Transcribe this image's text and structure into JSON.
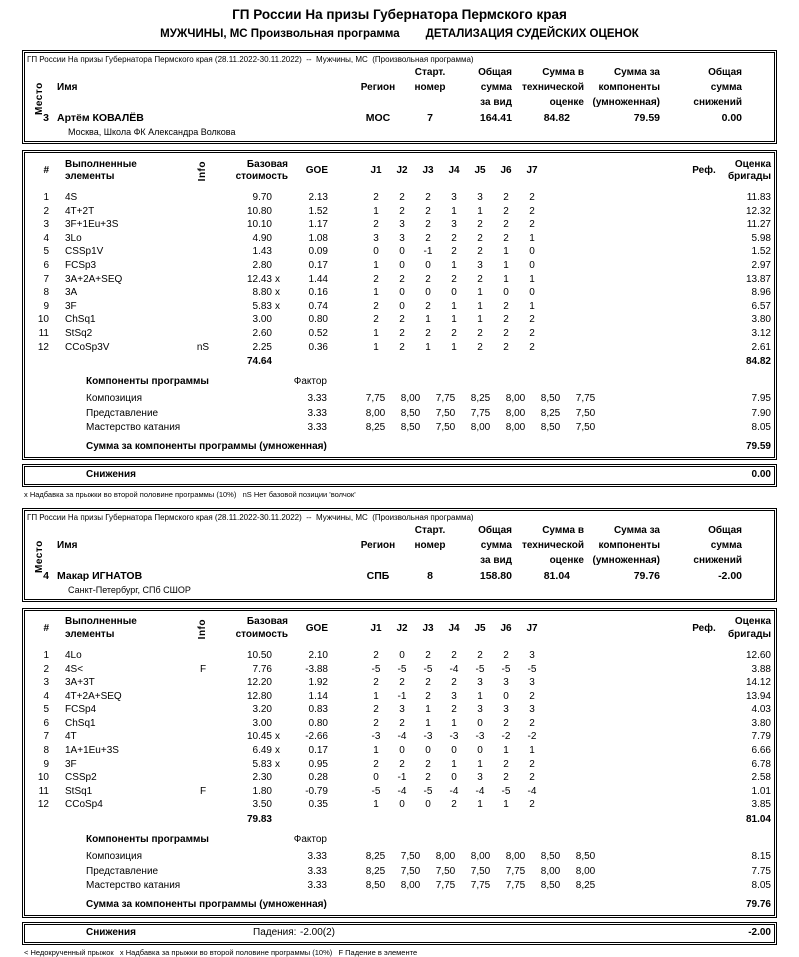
{
  "page": {
    "title": "ГП России На призы Губернатора Пермского края",
    "subtitle_left": "МУЖЧИНЫ, МС Произвольная программа",
    "subtitle_right": "ДЕТАЛИЗАЦИЯ СУДЕЙСКИХ ОЦЕНОК"
  },
  "labels": {
    "event_line": "ГП России На призы Губернатора Пермского края (28.11.2022-30.11.2022)  --  Мужчины, МС  (Произвольная программа)",
    "place": "Место",
    "name": "Имя",
    "region": "Регион",
    "start_l1": "Старт.",
    "start_l2": "номер",
    "vid_l1": "Общая",
    "vid_l2": "сумма",
    "vid_l3": "за вид",
    "tech_l1": "Сумма в",
    "tech_l2": "технической",
    "tech_l3": "оценке",
    "comp_l1": "Сумма за",
    "comp_l2": "компоненты",
    "comp_l3": "(умноженная)",
    "ded_l1": "Общая",
    "ded_l2": "сумма",
    "ded_l3": "снижений",
    "num": "#",
    "elements_l1": "Выполненные",
    "elements_l2": "элементы",
    "info": "Info",
    "base_l1": "Базовая",
    "base_l2": "стоимость",
    "goe": "GOE",
    "judges": [
      "J1",
      "J2",
      "J3",
      "J4",
      "J5",
      "J6",
      "J7"
    ],
    "ref": "Реф.",
    "panel_l1": "Оценка",
    "panel_l2": "бригады",
    "components_title": "Компоненты программы",
    "factor": "Фактор",
    "components_sum": "Сумма за компоненты программы (умноженная)",
    "deductions": "Снижения"
  },
  "blocks": [
    {
      "place": "3",
      "name": "Артём КОВАЛЁВ",
      "club": "Москва, Школа ФК Александра Волкова",
      "region": "МОС",
      "start_number": "7",
      "total_segment": "164.41",
      "total_element": "84.82",
      "total_component": "79.59",
      "total_deductions": "0.00",
      "rows": [
        {
          "n": "1",
          "name": "4S",
          "info": "",
          "base": "9.70",
          "x": "",
          "goe": "2.13",
          "j": [
            "2",
            "2",
            "2",
            "3",
            "3",
            "2",
            "2"
          ],
          "ref": "",
          "score": "11.83"
        },
        {
          "n": "2",
          "name": "4T+2T",
          "info": "",
          "base": "10.80",
          "x": "",
          "goe": "1.52",
          "j": [
            "1",
            "2",
            "2",
            "1",
            "1",
            "2",
            "2"
          ],
          "ref": "",
          "score": "12.32"
        },
        {
          "n": "3",
          "name": "3F+1Eu+3S",
          "info": "",
          "base": "10.10",
          "x": "",
          "goe": "1.17",
          "j": [
            "2",
            "3",
            "2",
            "3",
            "2",
            "2",
            "2"
          ],
          "ref": "",
          "score": "11.27"
        },
        {
          "n": "4",
          "name": "3Lo",
          "info": "",
          "base": "4.90",
          "x": "",
          "goe": "1.08",
          "j": [
            "3",
            "3",
            "2",
            "2",
            "2",
            "2",
            "1"
          ],
          "ref": "",
          "score": "5.98"
        },
        {
          "n": "5",
          "name": "CSSp1V",
          "info": "",
          "base": "1.43",
          "x": "",
          "goe": "0.09",
          "j": [
            "0",
            "0",
            "-1",
            "2",
            "2",
            "1",
            "0"
          ],
          "ref": "",
          "score": "1.52"
        },
        {
          "n": "6",
          "name": "FCSp3",
          "info": "",
          "base": "2.80",
          "x": "",
          "goe": "0.17",
          "j": [
            "1",
            "0",
            "0",
            "1",
            "3",
            "1",
            "0"
          ],
          "ref": "",
          "score": "2.97"
        },
        {
          "n": "7",
          "name": "3A+2A+SEQ",
          "info": "",
          "base": "12.43",
          "x": "x",
          "goe": "1.44",
          "j": [
            "2",
            "2",
            "2",
            "2",
            "2",
            "1",
            "1"
          ],
          "ref": "",
          "score": "13.87"
        },
        {
          "n": "8",
          "name": "3A",
          "info": "",
          "base": "8.80",
          "x": "x",
          "goe": "0.16",
          "j": [
            "1",
            "0",
            "0",
            "0",
            "1",
            "0",
            "0"
          ],
          "ref": "",
          "score": "8.96"
        },
        {
          "n": "9",
          "name": "3F",
          "info": "",
          "base": "5.83",
          "x": "x",
          "goe": "0.74",
          "j": [
            "2",
            "0",
            "2",
            "1",
            "1",
            "2",
            "1"
          ],
          "ref": "",
          "score": "6.57"
        },
        {
          "n": "10",
          "name": "ChSq1",
          "info": "",
          "base": "3.00",
          "x": "",
          "goe": "0.80",
          "j": [
            "2",
            "2",
            "1",
            "1",
            "1",
            "2",
            "2"
          ],
          "ref": "",
          "score": "3.80"
        },
        {
          "n": "11",
          "name": "StSq2",
          "info": "",
          "base": "2.60",
          "x": "",
          "goe": "0.52",
          "j": [
            "1",
            "2",
            "2",
            "2",
            "2",
            "2",
            "2"
          ],
          "ref": "",
          "score": "3.12"
        },
        {
          "n": "12",
          "name": "CCoSp3V",
          "info": "nS",
          "base": "2.25",
          "x": "",
          "goe": "0.36",
          "j": [
            "1",
            "2",
            "1",
            "1",
            "2",
            "2",
            "2"
          ],
          "ref": "",
          "score": "2.61"
        }
      ],
      "base_total": "74.64",
      "element_total": "84.82",
      "components": [
        {
          "name": "Композиция",
          "factor": "3.33",
          "j": [
            "7,75",
            "8,00",
            "7,75",
            "8,25",
            "8,00",
            "8,50",
            "7,75"
          ],
          "score": "7.95"
        },
        {
          "name": "Представление",
          "factor": "3.33",
          "j": [
            "8,00",
            "8,50",
            "7,50",
            "7,75",
            "8,00",
            "8,25",
            "7,50"
          ],
          "score": "7.90"
        },
        {
          "name": "Мастерство катания",
          "factor": "3.33",
          "j": [
            "8,25",
            "8,50",
            "7,50",
            "8,00",
            "8,00",
            "8,50",
            "7,50"
          ],
          "score": "8.05"
        }
      ],
      "components_total": "79.59",
      "deduction_label": "",
      "deduction_value": "",
      "deduction_total": "0.00",
      "footnote": "х Надбавка за прыжки во второй половине программы (10%)   nS Нет базовой позиции 'волчок'"
    },
    {
      "place": "4",
      "name": "Макар ИГНАТОВ",
      "club": "Санкт-Петербург, СПб СШОР",
      "region": "СПБ",
      "start_number": "8",
      "total_segment": "158.80",
      "total_element": "81.04",
      "total_component": "79.76",
      "total_deductions": "-2.00",
      "rows": [
        {
          "n": "1",
          "name": "4Lo",
          "info": "",
          "base": "10.50",
          "x": "",
          "goe": "2.10",
          "j": [
            "2",
            "0",
            "2",
            "2",
            "2",
            "2",
            "3"
          ],
          "ref": "",
          "score": "12.60"
        },
        {
          "n": "2",
          "name": "4S<",
          "info": "F",
          "base": "7.76",
          "x": "",
          "goe": "-3.88",
          "j": [
            "-5",
            "-5",
            "-5",
            "-4",
            "-5",
            "-5",
            "-5"
          ],
          "ref": "",
          "score": "3.88"
        },
        {
          "n": "3",
          "name": "3A+3T",
          "info": "",
          "base": "12.20",
          "x": "",
          "goe": "1.92",
          "j": [
            "2",
            "2",
            "2",
            "2",
            "3",
            "3",
            "3"
          ],
          "ref": "",
          "score": "14.12"
        },
        {
          "n": "4",
          "name": "4T+2A+SEQ",
          "info": "",
          "base": "12.80",
          "x": "",
          "goe": "1.14",
          "j": [
            "1",
            "-1",
            "2",
            "3",
            "1",
            "0",
            "2"
          ],
          "ref": "",
          "score": "13.94"
        },
        {
          "n": "5",
          "name": "FCSp4",
          "info": "",
          "base": "3.20",
          "x": "",
          "goe": "0.83",
          "j": [
            "2",
            "3",
            "1",
            "2",
            "3",
            "3",
            "3"
          ],
          "ref": "",
          "score": "4.03"
        },
        {
          "n": "6",
          "name": "ChSq1",
          "info": "",
          "base": "3.00",
          "x": "",
          "goe": "0.80",
          "j": [
            "2",
            "2",
            "1",
            "1",
            "0",
            "2",
            "2"
          ],
          "ref": "",
          "score": "3.80"
        },
        {
          "n": "7",
          "name": "4T",
          "info": "",
          "base": "10.45",
          "x": "x",
          "goe": "-2.66",
          "j": [
            "-3",
            "-4",
            "-3",
            "-3",
            "-3",
            "-2",
            "-2"
          ],
          "ref": "",
          "score": "7.79"
        },
        {
          "n": "8",
          "name": "1A+1Eu+3S",
          "info": "",
          "base": "6.49",
          "x": "x",
          "goe": "0.17",
          "j": [
            "1",
            "0",
            "0",
            "0",
            "0",
            "1",
            "1"
          ],
          "ref": "",
          "score": "6.66"
        },
        {
          "n": "9",
          "name": "3F",
          "info": "",
          "base": "5.83",
          "x": "x",
          "goe": "0.95",
          "j": [
            "2",
            "2",
            "2",
            "1",
            "1",
            "2",
            "2"
          ],
          "ref": "",
          "score": "6.78"
        },
        {
          "n": "10",
          "name": "CSSp2",
          "info": "",
          "base": "2.30",
          "x": "",
          "goe": "0.28",
          "j": [
            "0",
            "-1",
            "2",
            "0",
            "3",
            "2",
            "2"
          ],
          "ref": "",
          "score": "2.58"
        },
        {
          "n": "11",
          "name": "StSq1",
          "info": "F",
          "base": "1.80",
          "x": "",
          "goe": "-0.79",
          "j": [
            "-5",
            "-4",
            "-5",
            "-4",
            "-4",
            "-5",
            "-4"
          ],
          "ref": "",
          "score": "1.01"
        },
        {
          "n": "12",
          "name": "CCoSp4",
          "info": "",
          "base": "3.50",
          "x": "",
          "goe": "0.35",
          "j": [
            "1",
            "0",
            "0",
            "2",
            "1",
            "1",
            "2"
          ],
          "ref": "",
          "score": "3.85"
        }
      ],
      "base_total": "79.83",
      "element_total": "81.04",
      "components": [
        {
          "name": "Композиция",
          "factor": "3.33",
          "j": [
            "8,25",
            "7,50",
            "8,00",
            "8,00",
            "8,00",
            "8,50",
            "8,50"
          ],
          "score": "8.15"
        },
        {
          "name": "Представление",
          "factor": "3.33",
          "j": [
            "8,25",
            "7,50",
            "7,50",
            "7,50",
            "7,75",
            "8,00",
            "8,00"
          ],
          "score": "7.75"
        },
        {
          "name": "Мастерство катания",
          "factor": "3.33",
          "j": [
            "8,50",
            "8,00",
            "7,75",
            "7,75",
            "7,75",
            "8,50",
            "8,25"
          ],
          "score": "8.05"
        }
      ],
      "components_total": "79.76",
      "deduction_label": "Падения:",
      "deduction_value": "-2.00(2)",
      "deduction_total": "-2.00",
      "footnote": "< Недокрученный прыжок   х Надбавка за прыжки во второй половине программы (10%)   F Падение в элементе"
    }
  ]
}
